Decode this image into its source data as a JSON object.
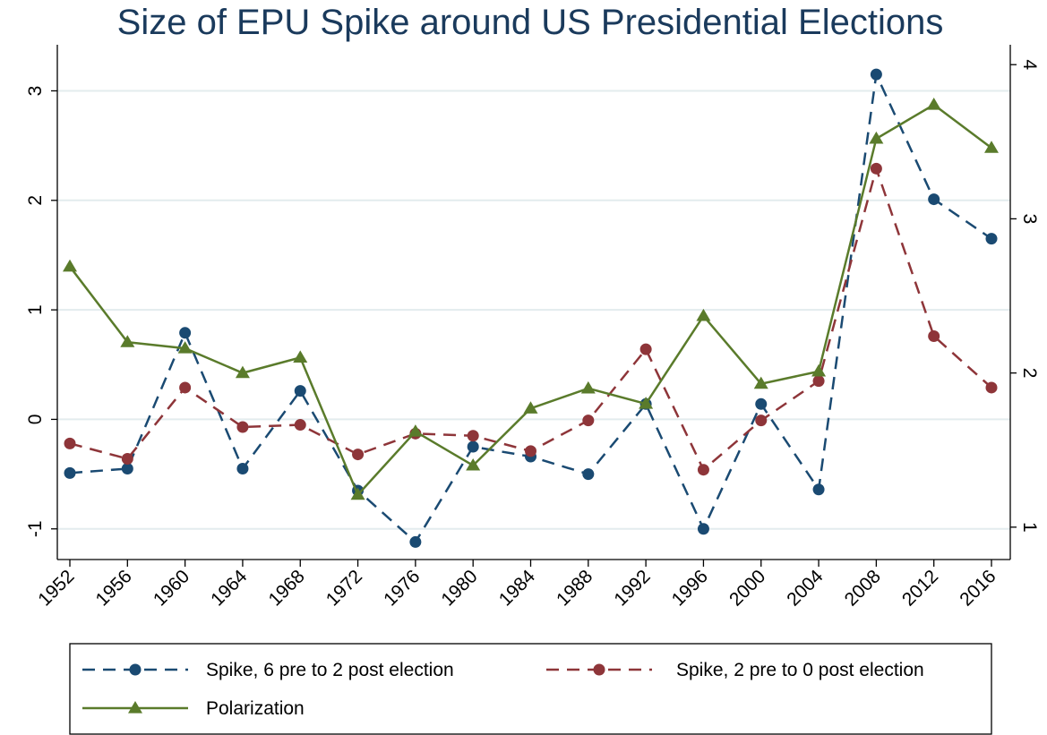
{
  "chart_data": {
    "type": "line",
    "title": "Size of EPU Spike around US Presidential Elections",
    "xlabel": "",
    "ylabel": "",
    "categories": [
      "1952",
      "1956",
      "1960",
      "1964",
      "1968",
      "1972",
      "1976",
      "1980",
      "1984",
      "1988",
      "1992",
      "1996",
      "2000",
      "2004",
      "2008",
      "2012",
      "2016"
    ],
    "left_axis": {
      "ylim": [
        -1.28,
        3.38
      ],
      "ticks": [
        3,
        2,
        1,
        0,
        -1
      ],
      "tick_labels": [
        "3",
        "2",
        "1",
        "0",
        "-1"
      ]
    },
    "right_axis": {
      "ylim": [
        0.79,
        4.1
      ],
      "ticks": [
        4,
        3,
        2,
        1
      ],
      "tick_labels": [
        "4",
        "3",
        "2",
        "1"
      ]
    },
    "grid": true,
    "legend_position": "bottom",
    "series": [
      {
        "name": "Spike, 6 pre to 2 post election",
        "axis": "left",
        "color": "#1a4a72",
        "line_style": "dashed",
        "marker": "circle",
        "values": [
          -0.49,
          -0.45,
          0.79,
          -0.45,
          0.26,
          -0.65,
          -1.12,
          -0.25,
          -0.34,
          -0.5,
          0.14,
          -1.0,
          0.14,
          -0.64,
          3.15,
          2.01,
          1.65
        ]
      },
      {
        "name": "Spike, 2 pre to 0 post election",
        "axis": "left",
        "color": "#8e3539",
        "line_style": "dashed",
        "marker": "circle",
        "values": [
          -0.22,
          -0.36,
          0.29,
          -0.07,
          -0.05,
          -0.32,
          -0.13,
          -0.15,
          -0.29,
          -0.01,
          0.64,
          -0.46,
          -0.01,
          0.35,
          2.29,
          0.76,
          0.29
        ]
      },
      {
        "name": "Polarization",
        "axis": "right",
        "color": "#5a7b2b",
        "line_style": "solid",
        "marker": "triangle",
        "values": [
          2.69,
          2.2,
          2.16,
          2.0,
          2.1,
          1.21,
          1.62,
          1.4,
          1.77,
          1.9,
          1.8,
          2.37,
          1.93,
          2.01,
          3.52,
          3.74,
          3.46
        ]
      }
    ]
  }
}
